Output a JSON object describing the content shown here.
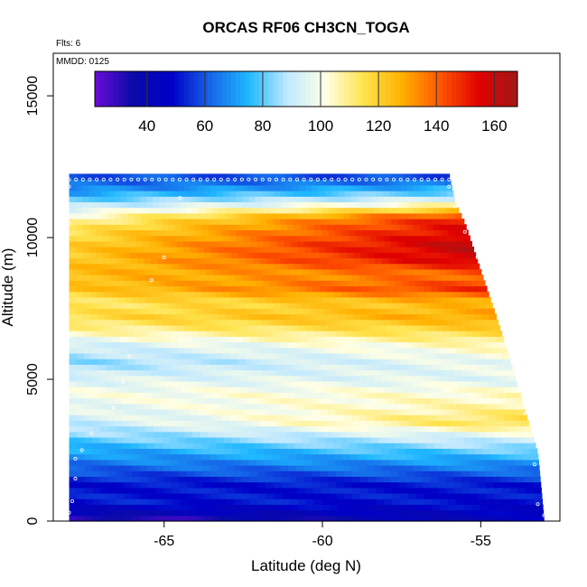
{
  "chart_data": {
    "type": "heatmap",
    "title": "ORCAS RF06 CH3CN_TOGA",
    "annotations": {
      "flights": "Flts: 6",
      "date": "MMDD: 0125"
    },
    "xlabel": "Latitude (deg N)",
    "ylabel": "Altitude (m)",
    "xlim": [
      -68.5,
      -52.5
    ],
    "ylim": [
      0,
      16500
    ],
    "x_ticks": [
      -65,
      -60,
      -55
    ],
    "y_ticks": [
      0,
      5000,
      10000,
      15000
    ],
    "x_tick_labels": [
      "-65",
      "-60",
      "-55"
    ],
    "y_tick_labels": [
      "0",
      "5000",
      "10000",
      "15000"
    ],
    "colorbar": {
      "range": [
        22,
        168
      ],
      "ticks": [
        40,
        60,
        80,
        100,
        120,
        140,
        160
      ],
      "tick_labels": [
        "40",
        "60",
        "80",
        "100",
        "120",
        "140",
        "160"
      ],
      "colors": [
        "#6a0dd8",
        "#0a0aa8",
        "#0000c8",
        "#1565e8",
        "#1fb8ff",
        "#bfe8ff",
        "#ffffe6",
        "#ffe34d",
        "#ffb000",
        "#ff5500",
        "#e00000",
        "#a01818"
      ]
    },
    "grid": false,
    "profile": {
      "altitude_m": [
        0,
        300,
        700,
        1300,
        1900,
        2500,
        3000,
        3500,
        4000,
        4500,
        5000,
        5600,
        6200,
        6700,
        7200,
        7700,
        8200,
        8700,
        9200,
        9700,
        10200,
        10700,
        11100,
        11500,
        11800,
        12100
      ],
      "value_south": [
        24,
        40,
        52,
        50,
        62,
        72,
        82,
        90,
        96,
        100,
        95,
        84,
        92,
        106,
        116,
        112,
        122,
        125,
        122,
        120,
        115,
        105,
        90,
        75,
        65,
        60
      ],
      "value_north": [
        44,
        46,
        50,
        52,
        66,
        82,
        96,
        118,
        108,
        104,
        96,
        98,
        106,
        118,
        130,
        126,
        148,
        138,
        158,
        162,
        156,
        150,
        110,
        85,
        72,
        58
      ]
    },
    "envelope_north_edge": {
      "altitude_m": [
        0,
        2400,
        3500,
        5000,
        6500,
        7500,
        8500,
        9500,
        10500,
        11200,
        12200
      ],
      "latitude": [
        -53.0,
        -53.2,
        -53.5,
        -53.9,
        -54.3,
        -54.6,
        -54.9,
        -55.2,
        -55.5,
        -55.8,
        -56.0
      ]
    },
    "samples": [
      {
        "lat": -68.0,
        "alt": 300
      },
      {
        "lat": -67.9,
        "alt": 700
      },
      {
        "lat": -67.8,
        "alt": 1500
      },
      {
        "lat": -67.8,
        "alt": 2200
      },
      {
        "lat": -67.6,
        "alt": 2500
      },
      {
        "lat": -67.3,
        "alt": 3100
      },
      {
        "lat": -66.6,
        "alt": 4000
      },
      {
        "lat": -66.3,
        "alt": 4900
      },
      {
        "lat": -66.1,
        "alt": 5800
      },
      {
        "lat": -65.4,
        "alt": 8500
      },
      {
        "lat": -65.0,
        "alt": 9300
      },
      {
        "lat": -64.5,
        "alt": 11400
      },
      {
        "lat": -68.0,
        "alt": 10500
      },
      {
        "lat": -68.0,
        "alt": 11800
      },
      {
        "lat": -56.0,
        "alt": 11800
      },
      {
        "lat": -55.8,
        "alt": 11100
      },
      {
        "lat": -55.5,
        "alt": 10200
      },
      {
        "lat": -55.1,
        "alt": 9300
      },
      {
        "lat": -54.7,
        "alt": 8300
      },
      {
        "lat": -54.4,
        "alt": 7500
      },
      {
        "lat": -54.1,
        "alt": 6600
      },
      {
        "lat": -53.8,
        "alt": 5600
      },
      {
        "lat": -53.6,
        "alt": 3800
      },
      {
        "lat": -53.3,
        "alt": 2000
      },
      {
        "lat": -53.2,
        "alt": 600
      },
      {
        "lat": -53.0,
        "alt": 200
      }
    ],
    "top_leg_altitude_m": 12050,
    "top_leg_latitudes": [
      -68.0,
      -56.0
    ]
  }
}
